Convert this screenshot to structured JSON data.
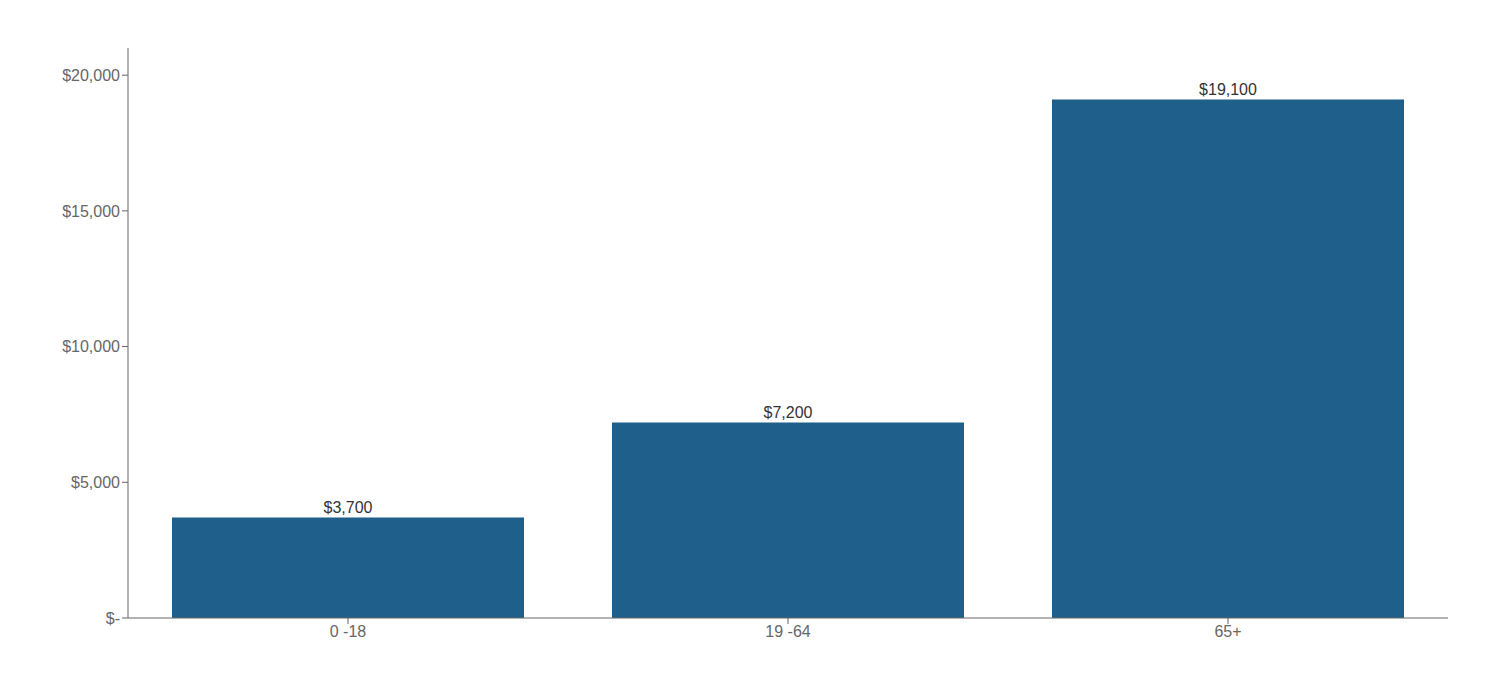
{
  "chart_data": {
    "type": "bar",
    "categories": [
      "0 -18",
      "19 -64",
      "65+"
    ],
    "values": [
      3700,
      7200,
      19100
    ],
    "value_labels": [
      "$3,700",
      "$7,200",
      "$19,100"
    ],
    "color": "#1F5F8B",
    "ylim": [
      0,
      21000
    ],
    "yticks": [
      {
        "value": 0,
        "label": "$-"
      },
      {
        "value": 5000,
        "label": "$5,000"
      },
      {
        "value": 10000,
        "label": "$10,000"
      },
      {
        "value": 15000,
        "label": "$15,000"
      },
      {
        "value": 20000,
        "label": "$20,000"
      }
    ],
    "data_labels": true,
    "grid": false
  }
}
